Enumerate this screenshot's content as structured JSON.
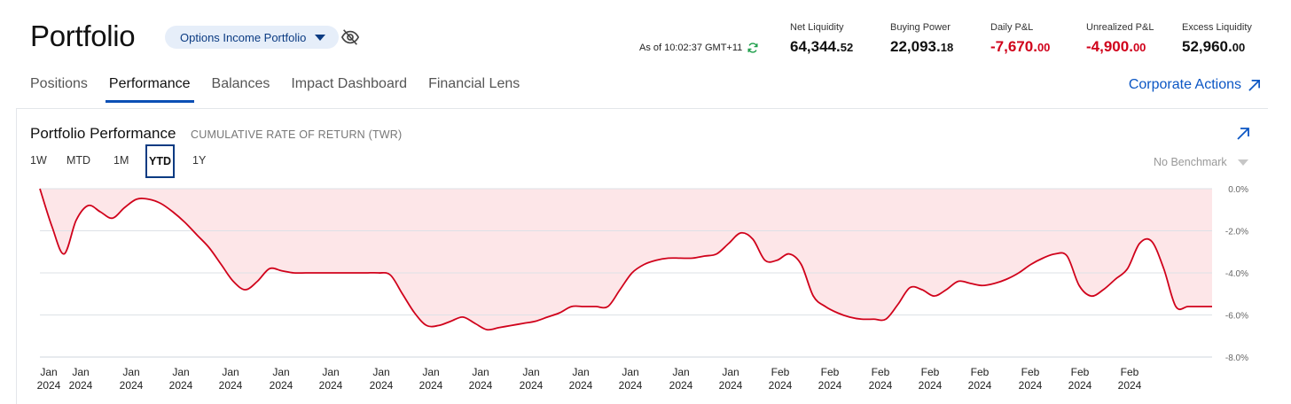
{
  "header": {
    "title": "Portfolio",
    "portfolio_selector": "Options Income Portfolio",
    "as_of": "As of 10:02:37 GMT+11"
  },
  "metrics": [
    {
      "label": "Net Liquidity",
      "int": "64,344.",
      "dec": "52",
      "negative": false
    },
    {
      "label": "Buying Power",
      "int": "22,093.",
      "dec": "18",
      "negative": false
    },
    {
      "label": "Daily P&L",
      "int": "-7,670.",
      "dec": "00",
      "negative": true
    },
    {
      "label": "Unrealized P&L",
      "int": "-4,900.",
      "dec": "00",
      "negative": true
    },
    {
      "label": "Excess Liquidity",
      "int": "52,960.",
      "dec": "00",
      "negative": false
    }
  ],
  "tabs": [
    {
      "label": "Positions",
      "active": false
    },
    {
      "label": "Performance",
      "active": true
    },
    {
      "label": "Balances",
      "active": false
    },
    {
      "label": "Impact Dashboard",
      "active": false
    },
    {
      "label": "Financial Lens",
      "active": false
    }
  ],
  "corporate_actions_label": "Corporate Actions",
  "card": {
    "title": "Portfolio Performance",
    "subtitle": "CUMULATIVE RATE OF RETURN (TWR)",
    "ranges": [
      {
        "label": "1W",
        "active": false
      },
      {
        "label": "MTD",
        "active": false
      },
      {
        "label": "1M",
        "active": false
      },
      {
        "label": "YTD",
        "active": true
      },
      {
        "label": "1Y",
        "active": false
      }
    ],
    "benchmark": "No Benchmark"
  },
  "colors": {
    "accent": "#0b4fb5",
    "negative": "#d0021b",
    "line": "#d0021b",
    "area": "#fde6e8"
  },
  "icons": {
    "visibility": "eye-off-icon",
    "refresh": "refresh-icon",
    "external": "arrow-up-right-icon",
    "dropdown": "caret-down-icon"
  },
  "chart_data": {
    "type": "area",
    "ylabel_unit": "%",
    "ylim": [
      -8.0,
      0.0
    ],
    "y_ticks": [
      "0.0%",
      "-2.0%",
      "-4.0%",
      "-6.0%",
      "-8.0%"
    ],
    "x_tick_labels": [
      {
        "month": "Jan",
        "year": "2024"
      },
      {
        "month": "Jan",
        "year": "2024"
      },
      {
        "month": "Jan",
        "year": "2024"
      },
      {
        "month": "Jan",
        "year": "2024"
      },
      {
        "month": "Jan",
        "year": "2024"
      },
      {
        "month": "Jan",
        "year": "2024"
      },
      {
        "month": "Jan",
        "year": "2024"
      },
      {
        "month": "Jan",
        "year": "2024"
      },
      {
        "month": "Jan",
        "year": "2024"
      },
      {
        "month": "Jan",
        "year": "2024"
      },
      {
        "month": "Jan",
        "year": "2024"
      },
      {
        "month": "Jan",
        "year": "2024"
      },
      {
        "month": "Jan",
        "year": "2024"
      },
      {
        "month": "Jan",
        "year": "2024"
      },
      {
        "month": "Jan",
        "year": "2024"
      },
      {
        "month": "Feb",
        "year": "2024"
      },
      {
        "month": "Feb",
        "year": "2024"
      },
      {
        "month": "Feb",
        "year": "2024"
      },
      {
        "month": "Feb",
        "year": "2024"
      },
      {
        "month": "Feb",
        "year": "2024"
      },
      {
        "month": "Feb",
        "year": "2024"
      },
      {
        "month": "Feb",
        "year": "2024"
      },
      {
        "month": "Feb",
        "year": "2024"
      }
    ],
    "series": [
      {
        "values": [
          0.0,
          -1.8,
          -3.1,
          -1.5,
          -0.8,
          -1.1,
          -1.4,
          -0.9,
          -0.5,
          -0.5,
          -0.7,
          -1.1,
          -1.6,
          -2.2,
          -2.8,
          -3.6,
          -4.4,
          -4.8,
          -4.4,
          -3.8,
          -3.9,
          -4.0,
          -4.0,
          -4.0,
          -4.0,
          -4.0,
          -4.0,
          -4.0,
          -4.0,
          -4.1,
          -5.0,
          -5.9,
          -6.5,
          -6.5,
          -6.3,
          -6.1,
          -6.4,
          -6.7,
          -6.6,
          -6.5,
          -6.4,
          -6.3,
          -6.1,
          -5.9,
          -5.6,
          -5.6,
          -5.6,
          -5.6,
          -4.8,
          -4.0,
          -3.6,
          -3.4,
          -3.3,
          -3.3,
          -3.3,
          -3.2,
          -3.1,
          -2.6,
          -2.1,
          -2.4,
          -3.4,
          -3.4,
          -3.1,
          -3.6,
          -5.1,
          -5.6,
          -5.9,
          -6.1,
          -6.2,
          -6.2,
          -6.2,
          -5.5,
          -4.7,
          -4.8,
          -5.1,
          -4.8,
          -4.4,
          -4.5,
          -4.6,
          -4.5,
          -4.3,
          -4.0,
          -3.6,
          -3.3,
          -3.1,
          -3.2,
          -4.6,
          -5.1,
          -4.8,
          -4.3,
          -3.8,
          -2.6,
          -2.5,
          -3.8,
          -5.6,
          -5.6,
          -5.6,
          -5.6
        ]
      }
    ],
    "grid": true,
    "legend": "none"
  }
}
